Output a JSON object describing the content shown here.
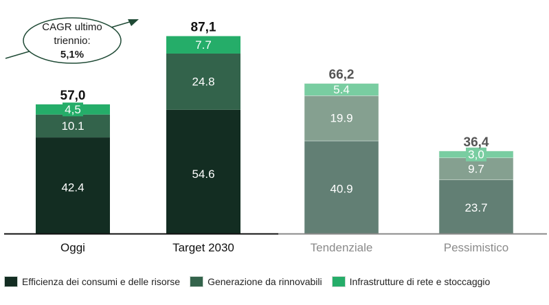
{
  "chart_data": {
    "type": "bar",
    "stacked": true,
    "title": "",
    "xlabel": "",
    "ylabel": "",
    "ylim": [
      0,
      95
    ],
    "grid": false,
    "categories": [
      "Oggi",
      "Target 2030",
      "Tendenziale",
      "Pessimistico"
    ],
    "totals": [
      "57,0",
      "87,1",
      "66,2",
      "36,4"
    ],
    "series": [
      {
        "name": "Efficienza dei consumi e delle risorse",
        "values": [
          42.4,
          54.6,
          40.9,
          23.7
        ],
        "labels": [
          "42.4",
          "54.6",
          "40.9",
          "23.7"
        ]
      },
      {
        "name": "Generazione da rinnovabili",
        "values": [
          10.1,
          24.8,
          19.9,
          9.7
        ],
        "labels": [
          "10.1",
          "24.8",
          "19.9",
          "9.7"
        ]
      },
      {
        "name": "Infrastrutture di rete e stoccaggio",
        "values": [
          4.5,
          7.7,
          5.4,
          3.0
        ],
        "labels": [
          "4,5",
          "7.7",
          "5.4",
          "3,0"
        ]
      }
    ],
    "colors": {
      "solid": [
        "#132d22",
        "#33634b",
        "#25ad69"
      ],
      "faded": [
        "#627f74",
        "#85a090",
        "#79cda1"
      ],
      "total_solid": "#111111",
      "total_faded": "#555555",
      "cat_solid": "#111111",
      "cat_faded": "#8a8a8a"
    },
    "faded_categories": [
      "Tendenziale",
      "Pessimistico"
    ],
    "annotation": {
      "lines": [
        "CAGR ultimo",
        "triennio:",
        "5,1%"
      ],
      "bold_last_line": true
    },
    "legend_position": "bottom-left"
  }
}
